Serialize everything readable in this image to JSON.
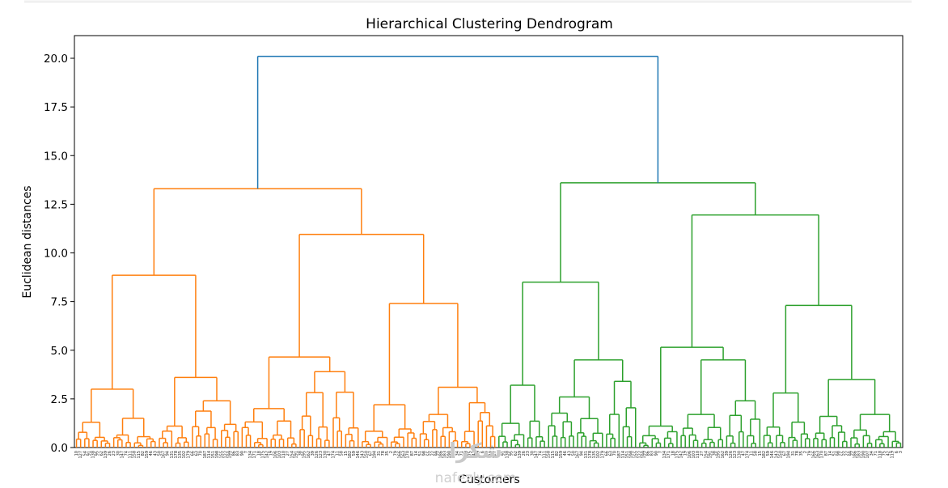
{
  "chart_data": {
    "type": "dendrogram",
    "title": "Hierarchical Clustering Dendrogram",
    "xlabel": "Customers",
    "ylabel": "Euclidean distances",
    "ylim": [
      0,
      21.2
    ],
    "yticks": [
      "0.0",
      "2.5",
      "5.0",
      "7.5",
      "10.0",
      "12.5",
      "15.0",
      "17.5",
      "20.0"
    ],
    "ytick_values": [
      0,
      2.5,
      5,
      7.5,
      10,
      12.5,
      15,
      17.5,
      20
    ],
    "leaf_count": 200,
    "grid": false,
    "colors": {
      "root": "#1f77b4",
      "cluster1": "#ff7f0e",
      "cluster2": "#2ca02c"
    },
    "merges": {
      "root": 20.1,
      "orange_top": 13.3,
      "orange_left": 8.85,
      "orange_right": 10.95,
      "orange_right_left": 4.65,
      "orange_right_right": 7.4,
      "green_top": 13.6,
      "green_left": 8.5,
      "green_right": 11.95,
      "green_right_left": 5.15,
      "green_right_right": 7.3
    },
    "watermark": [
      "شكرا",
      "nafezly.com"
    ]
  }
}
